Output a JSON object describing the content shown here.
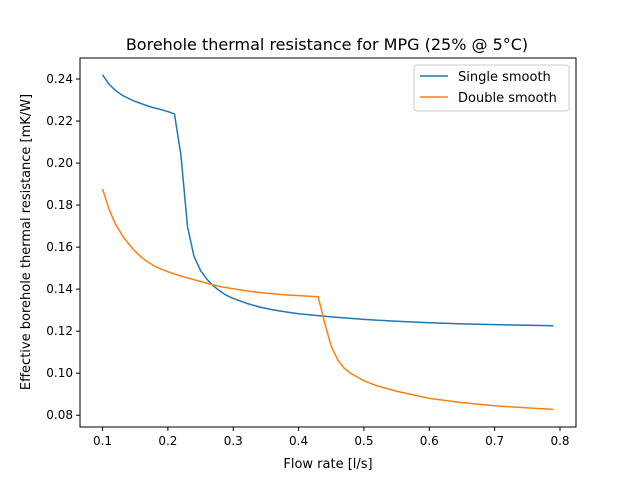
{
  "chart_data": {
    "type": "line",
    "title": "Borehole thermal resistance for MPG (25% @ 5°C)",
    "xlabel": "Flow rate [l/s]",
    "ylabel": "Effective borehole thermal resistance [mK/W]",
    "xlim": [
      0.0655,
      0.8245
    ],
    "ylim": [
      0.0744,
      0.25
    ],
    "xticks": [
      0.1,
      0.2,
      0.3,
      0.4,
      0.5,
      0.6,
      0.7,
      0.8
    ],
    "xtick_labels": [
      "0.1",
      "0.2",
      "0.3",
      "0.4",
      "0.5",
      "0.6",
      "0.7",
      "0.8"
    ],
    "yticks": [
      0.08,
      0.1,
      0.12,
      0.14,
      0.16,
      0.18,
      0.2,
      0.22,
      0.24
    ],
    "ytick_labels": [
      "0.08",
      "0.10",
      "0.12",
      "0.14",
      "0.16",
      "0.18",
      "0.20",
      "0.22",
      "0.24"
    ],
    "grid": false,
    "legend_position": "top-right",
    "series": [
      {
        "name": "Single smooth",
        "color": "#1f77b4",
        "x": [
          0.1,
          0.11,
          0.12,
          0.13,
          0.14,
          0.15,
          0.16,
          0.17,
          0.18,
          0.19,
          0.2,
          0.21,
          0.22,
          0.23,
          0.24,
          0.25,
          0.26,
          0.27,
          0.28,
          0.29,
          0.3,
          0.32,
          0.34,
          0.36,
          0.38,
          0.4,
          0.45,
          0.5,
          0.55,
          0.6,
          0.65,
          0.7,
          0.75,
          0.79
        ],
        "y": [
          0.242,
          0.2375,
          0.2345,
          0.2323,
          0.2307,
          0.2293,
          0.2282,
          0.2271,
          0.2262,
          0.2254,
          0.2245,
          0.2234,
          0.2037,
          0.1697,
          0.1556,
          0.1488,
          0.1446,
          0.1414,
          0.139,
          0.137,
          0.1356,
          0.1333,
          0.1315,
          0.1302,
          0.1292,
          0.1283,
          0.1268,
          0.1256,
          0.1247,
          0.124,
          0.1235,
          0.1231,
          0.1228,
          0.1226
        ]
      },
      {
        "name": "Double smooth",
        "color": "#ff7f0e",
        "x": [
          0.1,
          0.11,
          0.12,
          0.13,
          0.14,
          0.15,
          0.16,
          0.17,
          0.18,
          0.19,
          0.2,
          0.22,
          0.24,
          0.26,
          0.28,
          0.3,
          0.32,
          0.34,
          0.36,
          0.38,
          0.4,
          0.43,
          0.44,
          0.45,
          0.46,
          0.47,
          0.48,
          0.5,
          0.52,
          0.55,
          0.6,
          0.65,
          0.7,
          0.75,
          0.79
        ],
        "y": [
          0.1877,
          0.178,
          0.1708,
          0.1657,
          0.1615,
          0.158,
          0.1551,
          0.1528,
          0.1509,
          0.1495,
          0.1483,
          0.1462,
          0.1445,
          0.1428,
          0.1412,
          0.1402,
          0.1392,
          0.1384,
          0.1378,
          0.1373,
          0.1369,
          0.1364,
          0.1238,
          0.1128,
          0.1063,
          0.1023,
          0.0999,
          0.0964,
          0.094,
          0.0914,
          0.088,
          0.086,
          0.0845,
          0.0835,
          0.0828
        ]
      }
    ]
  }
}
